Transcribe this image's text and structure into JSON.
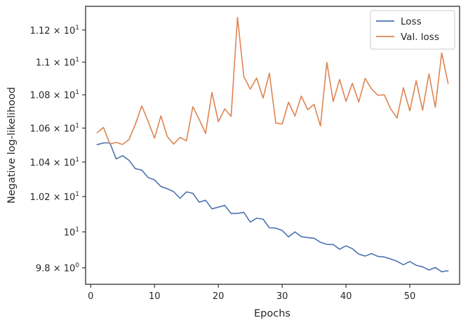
{
  "chart_data": {
    "type": "line",
    "xlabel": "Epochs",
    "ylabel": "Negative log-likelihood",
    "xlim": [
      -0.8,
      57.8
    ],
    "ylim": [
      9.71,
      11.35
    ],
    "y_scale": "log",
    "x_ticks": [
      0,
      10,
      20,
      30,
      40,
      50
    ],
    "y_ticks": [
      {
        "value": 9.8,
        "mantissa": "9.8",
        "exponent": "0"
      },
      {
        "value": 10,
        "mantissa": "",
        "exponent": "1"
      },
      {
        "value": 10.2,
        "mantissa": "1.02",
        "exponent": "1"
      },
      {
        "value": 10.4,
        "mantissa": "1.04",
        "exponent": "1"
      },
      {
        "value": 10.6,
        "mantissa": "1.06",
        "exponent": "1"
      },
      {
        "value": 10.8,
        "mantissa": "1.08",
        "exponent": "1"
      },
      {
        "value": 11.0,
        "mantissa": "1.1",
        "exponent": "1"
      },
      {
        "value": 11.2,
        "mantissa": "1.12",
        "exponent": "1"
      }
    ],
    "legend_position": "top-right",
    "grid": false,
    "x": [
      1,
      2,
      3,
      4,
      5,
      6,
      7,
      8,
      9,
      10,
      11,
      12,
      13,
      14,
      15,
      16,
      17,
      18,
      19,
      20,
      21,
      22,
      23,
      24,
      25,
      26,
      27,
      28,
      29,
      30,
      31,
      32,
      33,
      34,
      35,
      36,
      37,
      38,
      39,
      40,
      41,
      42,
      43,
      44,
      45,
      46,
      47,
      48,
      49,
      50,
      51,
      52,
      53,
      54,
      55,
      56
    ],
    "series": [
      {
        "name": "Loss",
        "color": "#4c72b0",
        "values": [
          10.502,
          10.512,
          10.512,
          10.418,
          10.437,
          10.41,
          10.361,
          10.353,
          10.31,
          10.296,
          10.258,
          10.245,
          10.228,
          10.19,
          10.227,
          10.219,
          10.168,
          10.179,
          10.13,
          10.14,
          10.15,
          10.104,
          10.104,
          10.11,
          10.055,
          10.077,
          10.072,
          10.023,
          10.021,
          10.008,
          9.972,
          10.0,
          9.973,
          9.968,
          9.964,
          9.942,
          9.93,
          9.929,
          9.903,
          9.922,
          9.906,
          9.876,
          9.865,
          9.879,
          9.863,
          9.86,
          9.849,
          9.836,
          9.817,
          9.835,
          9.814,
          9.806,
          9.788,
          9.802,
          9.779,
          9.784
        ]
      },
      {
        "name": "Val. loss",
        "color": "#dd8452",
        "values": [
          10.573,
          10.604,
          10.506,
          10.515,
          10.503,
          10.532,
          10.623,
          10.733,
          10.64,
          10.54,
          10.673,
          10.55,
          10.505,
          10.545,
          10.524,
          10.728,
          10.652,
          10.568,
          10.815,
          10.638,
          10.715,
          10.67,
          11.28,
          10.91,
          10.835,
          10.902,
          10.78,
          10.932,
          10.63,
          10.624,
          10.755,
          10.672,
          10.792,
          10.71,
          10.742,
          10.612,
          10.998,
          10.76,
          10.893,
          10.76,
          10.87,
          10.756,
          10.9,
          10.835,
          10.797,
          10.8,
          10.715,
          10.66,
          10.843,
          10.703,
          10.886,
          10.707,
          10.928,
          10.725,
          11.057,
          10.869
        ]
      }
    ]
  }
}
